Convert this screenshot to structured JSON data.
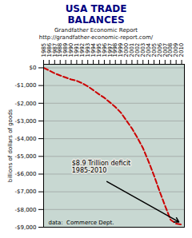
{
  "chart_data": {
    "type": "line",
    "title": "USA TRADE\nBALANCES",
    "subtitle": "Grandfather Economic Report\nhttp://grandfather-economic-report.com/",
    "y_label": "billions of dollars of goods",
    "x": [
      1985,
      1986,
      1987,
      1988,
      1989,
      1990,
      1991,
      1992,
      1993,
      1994,
      1995,
      1996,
      1997,
      1998,
      1999,
      2000,
      2001,
      2002,
      2003,
      2004,
      2005,
      2006,
      2007,
      2008,
      2009,
      2010
    ],
    "values": [
      0,
      -148,
      -306,
      -433,
      -546,
      -658,
      -734,
      -870,
      -1046,
      -1263,
      -1483,
      -1692,
      -1948,
      -2215,
      -2533,
      -2980,
      -3423,
      -3954,
      -4534,
      -5283,
      -6083,
      -6963,
      -7791,
      -8583,
      -8800,
      -8850
    ],
    "color": "#cc0000",
    "line_style": "dashed",
    "xlim": [
      1985,
      2010.5
    ],
    "xticks": [
      1985,
      1986,
      1987,
      1988,
      1989,
      1990,
      1991,
      1992,
      1993,
      1994,
      1995,
      1996,
      1997,
      1998,
      1999,
      2000,
      2001,
      2002,
      2003,
      2004,
      2005,
      2006,
      2007,
      2008,
      2009,
      2010
    ],
    "ylim": [
      -9000,
      200
    ],
    "yticks": [
      {
        "value": 0,
        "label": "$0"
      },
      {
        "value": -1000,
        "label": "-$1,000"
      },
      {
        "value": -2000,
        "label": "-$2,000"
      },
      {
        "value": -3000,
        "label": "-$3,000"
      },
      {
        "value": -4000,
        "label": "-$4,000"
      },
      {
        "value": -5000,
        "label": "-$5,000"
      },
      {
        "value": -6000,
        "label": "-$6,000"
      },
      {
        "value": -7000,
        "label": "-$7,000"
      },
      {
        "value": -8000,
        "label": "-$8,000"
      },
      {
        "value": -9000,
        "label": "-$9,000"
      }
    ],
    "grid": true,
    "annotations": [
      {
        "text": "$8.9 Trillion deficit\n1985-2010",
        "x": 2009.5,
        "y": -8700
      },
      {
        "text": "data:  Commerce Dept."
      }
    ]
  }
}
